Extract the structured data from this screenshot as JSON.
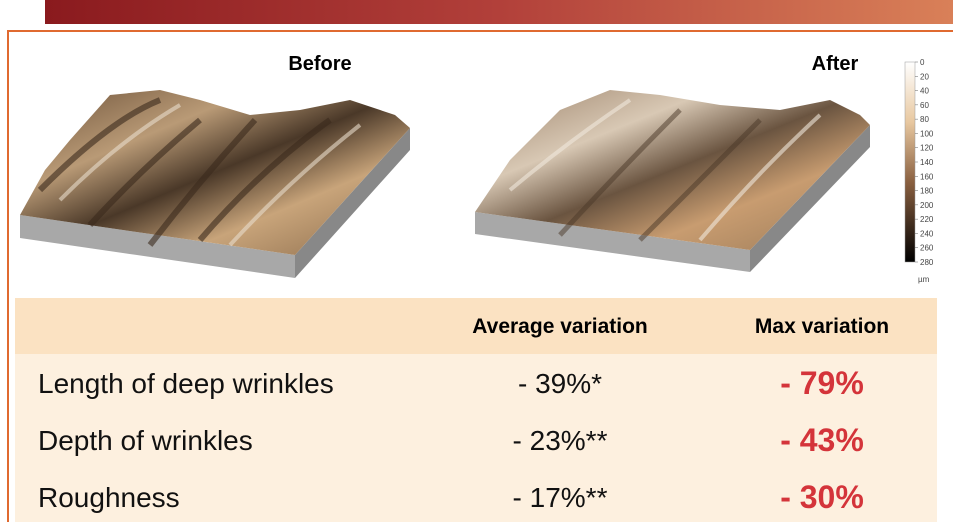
{
  "figure": {
    "before_label": "Before",
    "after_label": "After",
    "color_scale": {
      "ticks": [
        "0",
        "20",
        "40",
        "60",
        "80",
        "100",
        "120",
        "140",
        "160",
        "180",
        "200",
        "220",
        "240",
        "260",
        "280"
      ],
      "unit": "µm"
    }
  },
  "table": {
    "header": [
      "Average variation",
      "Max variation"
    ],
    "rows": [
      [
        "Length of deep wrinkles",
        "- 39%*",
        "- 79%"
      ],
      [
        "Depth of wrinkles",
        "- 23%**",
        "- 43%"
      ],
      [
        "Roughness",
        "- 17%**",
        "- 30%"
      ]
    ]
  }
}
